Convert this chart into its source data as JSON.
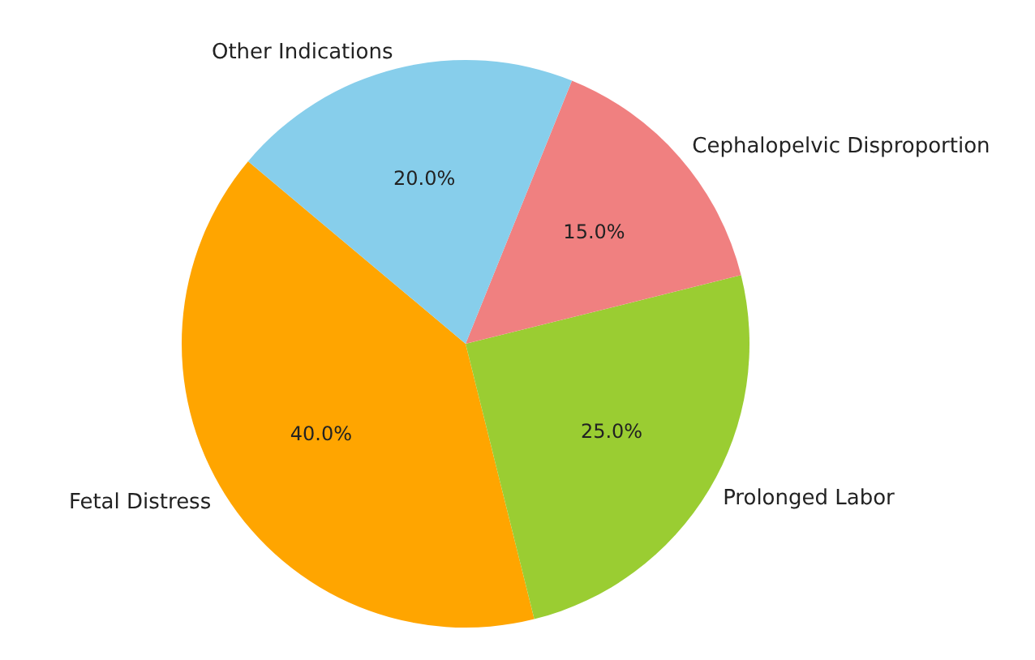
{
  "chart_data": {
    "type": "pie",
    "categories": [
      "Fetal Distress",
      "Prolonged Labor",
      "Cephalopelvic Disproportion",
      "Other Indications"
    ],
    "values": [
      40,
      25,
      15,
      20
    ],
    "value_labels": [
      "40.0%",
      "25.0%",
      "15.0%",
      "20.0%"
    ],
    "colors": [
      "#ffa500",
      "#9acd32",
      "#f08080",
      "#87ceeb"
    ],
    "legend": false
  }
}
